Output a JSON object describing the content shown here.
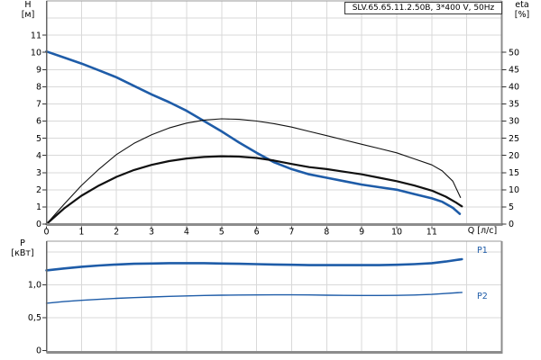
{
  "title_box": {
    "label": "SLV.65.65.11.2.50B, 3*400 V, 50Hz"
  },
  "labels": {
    "h_title": "H",
    "h_unit": "[м]",
    "eta_title": "eta",
    "eta_unit": "[%]",
    "q_axis": "Q [л/с]",
    "p_title": "P",
    "p_unit": "[кВт]",
    "p1": "P1",
    "p2": "P2"
  },
  "colors": {
    "curve_blue": "#1E5CA8",
    "curve_black": "#111111",
    "grid": "#D9D9D9",
    "frame": "#8C8C8C",
    "axis_dark": "#666666",
    "tick": "#333333",
    "text": "#000000"
  },
  "chart_data": [
    {
      "type": "line",
      "title": "SLV.65.65.11.2.50B, 3*400 V, 50Hz",
      "xlabel": "Q [л/с]",
      "ylabel_left": "H [м]",
      "ylabel_right": "eta [%]",
      "xlim": [
        0,
        13
      ],
      "ylim_left": [
        0,
        13
      ],
      "ylim_right": [
        0,
        65
      ],
      "grid": true,
      "x_ticks": [
        0,
        1,
        2,
        3,
        4,
        5,
        6,
        7,
        8,
        9,
        10,
        11
      ],
      "y_ticks_left": [
        0,
        1,
        2,
        3,
        4,
        5,
        6,
        7,
        8,
        9,
        10,
        11
      ],
      "y_ticks_right": [
        0,
        5,
        10,
        15,
        20,
        25,
        30,
        35,
        40,
        45,
        50
      ],
      "series": [
        {
          "name": "head-curve",
          "axis": "left",
          "color": "#1E5CA8",
          "width": 2.6,
          "points": [
            [
              0,
              10.05
            ],
            [
              0.5,
              9.7
            ],
            [
              1,
              9.35
            ],
            [
              1.5,
              8.95
            ],
            [
              2,
              8.55
            ],
            [
              2.5,
              8.05
            ],
            [
              3,
              7.55
            ],
            [
              3.5,
              7.1
            ],
            [
              4,
              6.6
            ],
            [
              4.5,
              6.0
            ],
            [
              5,
              5.4
            ],
            [
              5.5,
              4.75
            ],
            [
              6,
              4.15
            ],
            [
              6.5,
              3.6
            ],
            [
              7,
              3.2
            ],
            [
              7.5,
              2.9
            ],
            [
              8,
              2.7
            ],
            [
              8.5,
              2.5
            ],
            [
              9,
              2.3
            ],
            [
              9.5,
              2.15
            ],
            [
              10,
              2.0
            ],
            [
              10.5,
              1.75
            ],
            [
              11,
              1.5
            ],
            [
              11.3,
              1.3
            ],
            [
              11.6,
              0.95
            ],
            [
              11.8,
              0.6
            ]
          ]
        },
        {
          "name": "eta1-curve",
          "axis": "right",
          "color": "#111111",
          "width": 1.1,
          "points": [
            [
              0,
              0
            ],
            [
              0.5,
              5.75
            ],
            [
              1,
              11.25
            ],
            [
              1.5,
              16
            ],
            [
              2,
              20.25
            ],
            [
              2.5,
              23.5
            ],
            [
              3,
              26
            ],
            [
              3.5,
              28
            ],
            [
              4,
              29.4
            ],
            [
              4.5,
              30.3
            ],
            [
              5,
              30.65
            ],
            [
              5.5,
              30.5
            ],
            [
              6,
              30
            ],
            [
              6.5,
              29.25
            ],
            [
              7,
              28.25
            ],
            [
              7.5,
              27
            ],
            [
              8,
              25.75
            ],
            [
              8.5,
              24.5
            ],
            [
              9,
              23.25
            ],
            [
              9.5,
              22
            ],
            [
              10,
              20.75
            ],
            [
              10.5,
              19
            ],
            [
              11,
              17.25
            ],
            [
              11.3,
              15.5
            ],
            [
              11.6,
              12.5
            ],
            [
              11.82,
              7.75
            ]
          ]
        },
        {
          "name": "eta2-curve",
          "axis": "right",
          "color": "#111111",
          "width": 2.2,
          "points": [
            [
              0,
              0
            ],
            [
              0.5,
              4.5
            ],
            [
              1,
              8.25
            ],
            [
              1.5,
              11.25
            ],
            [
              2,
              13.75
            ],
            [
              2.5,
              15.75
            ],
            [
              3,
              17.25
            ],
            [
              3.5,
              18.35
            ],
            [
              4,
              19.1
            ],
            [
              4.5,
              19.55
            ],
            [
              5,
              19.75
            ],
            [
              5.5,
              19.65
            ],
            [
              6,
              19.25
            ],
            [
              6.5,
              18.5
            ],
            [
              7,
              17.5
            ],
            [
              7.5,
              16.6
            ],
            [
              8,
              16
            ],
            [
              8.5,
              15.25
            ],
            [
              9,
              14.5
            ],
            [
              9.5,
              13.5
            ],
            [
              10,
              12.5
            ],
            [
              10.5,
              11.25
            ],
            [
              11,
              9.75
            ],
            [
              11.4,
              8
            ],
            [
              11.7,
              6.25
            ],
            [
              11.86,
              5.15
            ]
          ]
        }
      ]
    },
    {
      "type": "line",
      "title": "",
      "xlabel": "",
      "ylabel": "P [кВт]",
      "xlim": [
        0,
        13
      ],
      "ylim": [
        0,
        1.66
      ],
      "grid": true,
      "grid_y": [
        0.5,
        1.0,
        1.5
      ],
      "y_ticks": {
        "values": [
          0,
          0.5,
          1.0
        ],
        "labels": [
          "0",
          "0,5",
          "1,0"
        ]
      },
      "series": [
        {
          "name": "P1",
          "color": "#1E5CA8",
          "width": 2.6,
          "points": [
            [
              0,
              1.22
            ],
            [
              0.5,
              1.25
            ],
            [
              1,
              1.275
            ],
            [
              1.5,
              1.295
            ],
            [
              2,
              1.31
            ],
            [
              2.5,
              1.32
            ],
            [
              3,
              1.325
            ],
            [
              3.5,
              1.33
            ],
            [
              4,
              1.33
            ],
            [
              4.5,
              1.33
            ],
            [
              5,
              1.325
            ],
            [
              5.5,
              1.32
            ],
            [
              6,
              1.315
            ],
            [
              6.5,
              1.31
            ],
            [
              7,
              1.305
            ],
            [
              7.5,
              1.3
            ],
            [
              8,
              1.3
            ],
            [
              8.5,
              1.3
            ],
            [
              9,
              1.3
            ],
            [
              9.5,
              1.3
            ],
            [
              10,
              1.305
            ],
            [
              10.5,
              1.315
            ],
            [
              11,
              1.33
            ],
            [
              11.4,
              1.355
            ],
            [
              11.86,
              1.39
            ]
          ]
        },
        {
          "name": "P2",
          "color": "#1E5CA8",
          "width": 1.4,
          "points": [
            [
              0,
              0.72
            ],
            [
              0.5,
              0.745
            ],
            [
              1,
              0.765
            ],
            [
              1.5,
              0.78
            ],
            [
              2,
              0.795
            ],
            [
              2.5,
              0.805
            ],
            [
              3,
              0.815
            ],
            [
              3.5,
              0.825
            ],
            [
              4,
              0.832
            ],
            [
              4.5,
              0.838
            ],
            [
              5,
              0.842
            ],
            [
              5.5,
              0.845
            ],
            [
              6,
              0.847
            ],
            [
              6.5,
              0.848
            ],
            [
              7,
              0.848
            ],
            [
              7.5,
              0.846
            ],
            [
              8,
              0.843
            ],
            [
              8.5,
              0.84
            ],
            [
              9,
              0.838
            ],
            [
              9.5,
              0.838
            ],
            [
              10,
              0.84
            ],
            [
              10.5,
              0.845
            ],
            [
              11,
              0.855
            ],
            [
              11.4,
              0.868
            ],
            [
              11.86,
              0.885
            ]
          ]
        }
      ]
    }
  ]
}
